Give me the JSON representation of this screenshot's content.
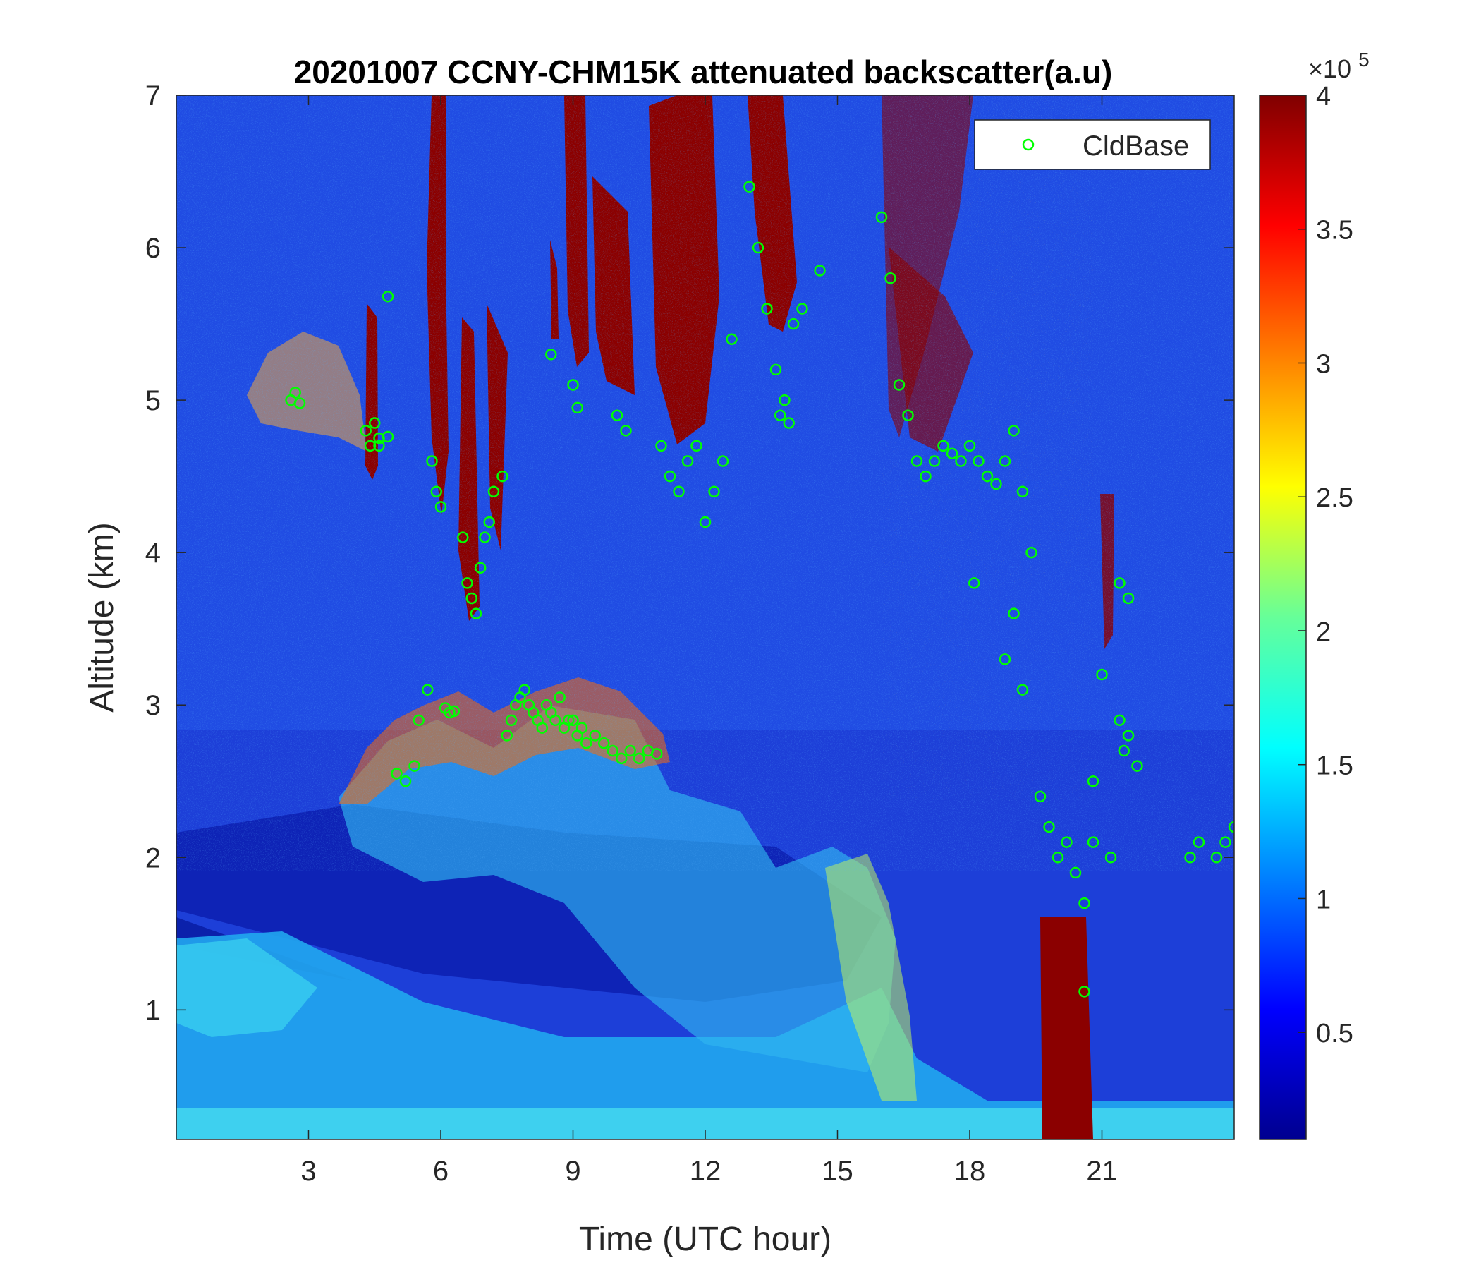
{
  "chart_data": {
    "type": "heatmap",
    "title": "20201007 CCNY-CHM15K attenuated backscatter(a.u)",
    "xlabel": "Time (UTC hour)",
    "ylabel": "Altitude (km)",
    "xlim": [
      0,
      24
    ],
    "ylim": [
      0.15,
      7
    ],
    "xticks": [
      3,
      6,
      9,
      12,
      15,
      18,
      21
    ],
    "xtick_labels": [
      "3",
      "6",
      "9",
      "12",
      "15",
      "18",
      "21"
    ],
    "yticks": [
      1,
      2,
      3,
      4,
      5,
      6,
      7
    ],
    "ytick_labels": [
      "1",
      "2",
      "3",
      "4",
      "5",
      "6",
      "7"
    ],
    "colorbar": {
      "colormap": "jet",
      "range": [
        10000,
        400000
      ],
      "ticks": [
        50000,
        100000,
        150000,
        200000,
        250000,
        300000,
        350000,
        400000
      ],
      "tick_labels": [
        "0.5",
        "1",
        "1.5",
        "2",
        "2.5",
        "3",
        "3.5",
        "4"
      ],
      "exponent_label": "×10",
      "exponent_power": "5"
    },
    "legend": {
      "position": "top-right",
      "entries": [
        "CldBase"
      ]
    },
    "series": [
      {
        "name": "CldBase",
        "marker": "circle-open",
        "color": "#00ff00",
        "x": [
          2.6,
          2.7,
          2.8,
          4.3,
          4.4,
          4.5,
          4.6,
          4.8,
          4.6,
          4.8,
          5.0,
          5.2,
          5.4,
          5.5,
          5.7,
          5.8,
          5.9,
          6.0,
          6.1,
          6.2,
          6.3,
          6.5,
          6.6,
          6.7,
          6.8,
          6.9,
          7.0,
          7.1,
          7.2,
          7.4,
          7.5,
          7.6,
          7.7,
          7.8,
          7.9,
          8.0,
          8.1,
          8.2,
          8.3,
          8.4,
          8.5,
          8.6,
          8.7,
          8.8,
          8.9,
          9.0,
          9.1,
          9.2,
          9.3,
          9.5,
          9.7,
          9.9,
          10.1,
          10.3,
          10.5,
          10.7,
          10.9,
          8.5,
          9.0,
          9.1,
          10.0,
          10.2,
          11.0,
          11.2,
          11.4,
          11.6,
          11.8,
          12.0,
          12.2,
          12.4,
          12.6,
          13.0,
          13.2,
          13.4,
          13.6,
          13.8,
          14.0,
          14.2,
          14.6,
          13.7,
          13.9,
          16.0,
          16.2,
          16.4,
          16.6,
          16.8,
          17.0,
          17.2,
          17.4,
          17.6,
          17.8,
          18.0,
          18.2,
          18.4,
          18.6,
          18.8,
          19.0,
          19.2,
          19.4,
          18.1,
          18.8,
          19.0,
          19.2,
          19.6,
          19.8,
          20.0,
          20.2,
          20.4,
          20.6,
          20.8,
          21.0,
          21.2,
          21.4,
          21.6,
          21.8,
          21.4,
          21.6,
          21.5,
          20.8,
          20.6,
          23.0,
          23.2,
          23.6,
          23.8,
          24.0
        ],
        "y": [
          5.0,
          5.05,
          4.98,
          4.8,
          4.7,
          4.85,
          4.75,
          5.68,
          4.7,
          4.76,
          2.55,
          2.5,
          2.6,
          2.9,
          3.1,
          4.6,
          4.4,
          4.3,
          2.98,
          2.95,
          2.96,
          4.1,
          3.8,
          3.7,
          3.6,
          3.9,
          4.1,
          4.2,
          4.4,
          4.5,
          2.8,
          2.9,
          3.0,
          3.05,
          3.1,
          3.0,
          2.95,
          2.9,
          2.85,
          3.0,
          2.95,
          2.9,
          3.05,
          2.85,
          2.9,
          2.9,
          2.8,
          2.85,
          2.75,
          2.8,
          2.75,
          2.7,
          2.65,
          2.7,
          2.65,
          2.7,
          2.68,
          5.3,
          5.1,
          4.95,
          4.9,
          4.8,
          4.7,
          4.5,
          4.4,
          4.6,
          4.7,
          4.2,
          4.4,
          4.6,
          5.4,
          6.4,
          6.0,
          5.6,
          5.2,
          5.0,
          5.5,
          5.6,
          5.85,
          4.9,
          4.85,
          6.2,
          5.8,
          5.1,
          4.9,
          4.6,
          4.5,
          4.6,
          4.7,
          4.65,
          4.6,
          4.7,
          4.6,
          4.5,
          4.45,
          4.6,
          4.8,
          4.4,
          4.0,
          3.8,
          3.3,
          3.6,
          3.1,
          2.4,
          2.2,
          2.0,
          2.1,
          1.9,
          1.7,
          2.1,
          3.2,
          2.0,
          3.8,
          3.7,
          2.6,
          2.9,
          2.8,
          2.7,
          2.5,
          1.12,
          2.0,
          2.1,
          2.0,
          2.1,
          2.2
        ]
      }
    ]
  }
}
